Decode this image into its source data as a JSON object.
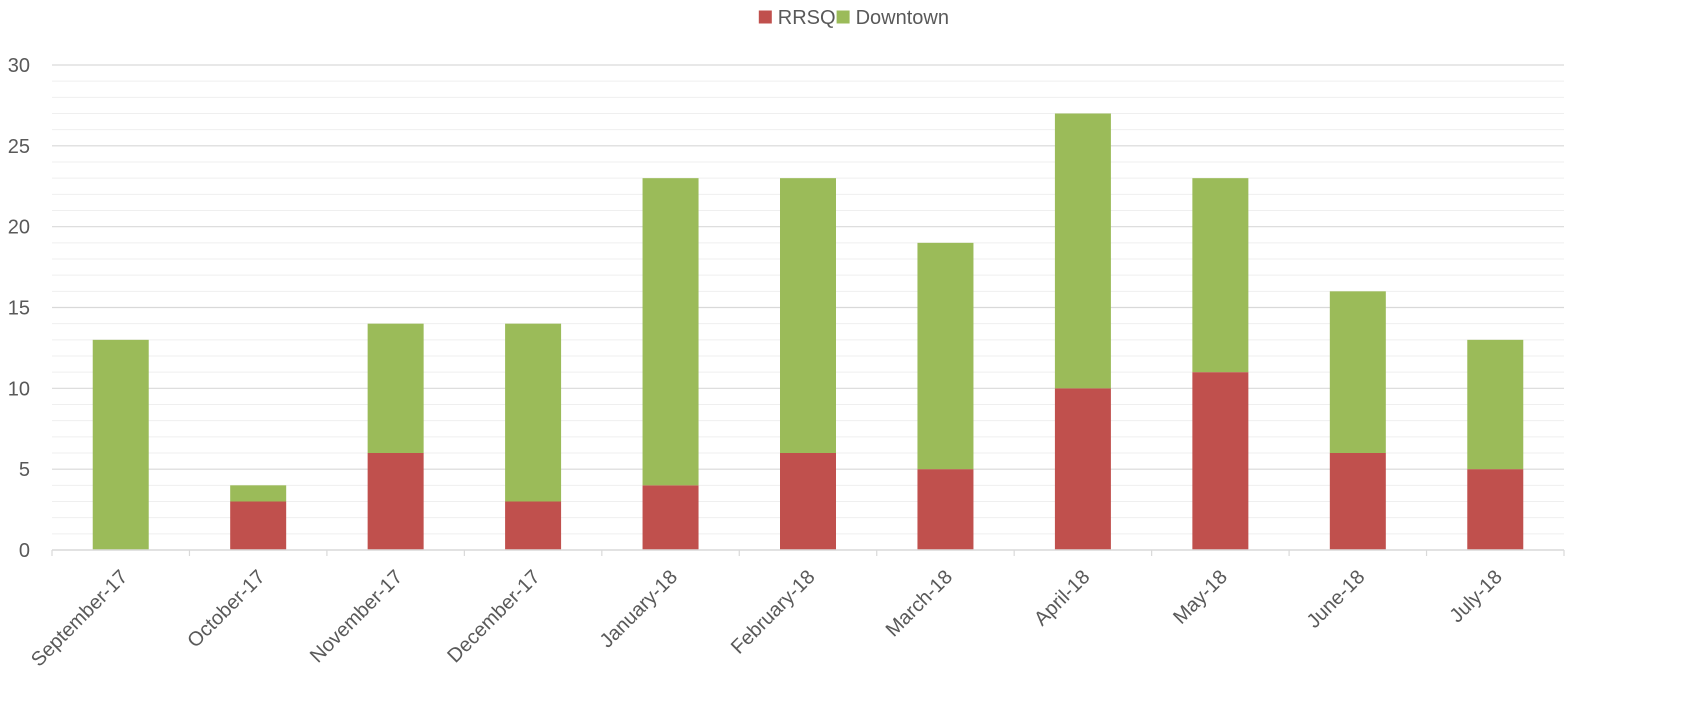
{
  "chart_data": {
    "type": "bar",
    "stacked": true,
    "title": "",
    "xlabel": "",
    "ylabel": "",
    "categories": [
      "September-17",
      "October-17",
      "November-17",
      "December-17",
      "January-18",
      "February-18",
      "March-18",
      "April-18",
      "May-18",
      "June-18",
      "July-18"
    ],
    "series": [
      {
        "name": "RRSQ",
        "color": "#C0504D",
        "values": [
          0,
          3,
          6,
          3,
          4,
          6,
          5,
          10,
          11,
          6,
          5
        ]
      },
      {
        "name": "Downtown",
        "color": "#9BBB59",
        "values": [
          13,
          1,
          8,
          11,
          19,
          17,
          14,
          17,
          12,
          10,
          8
        ]
      }
    ],
    "ylim": [
      0,
      30
    ],
    "yticks": [
      "0",
      "5",
      "10",
      "15",
      "20",
      "25",
      "30"
    ],
    "grid": true,
    "minor_grid": true,
    "legend_position": "top-center"
  }
}
